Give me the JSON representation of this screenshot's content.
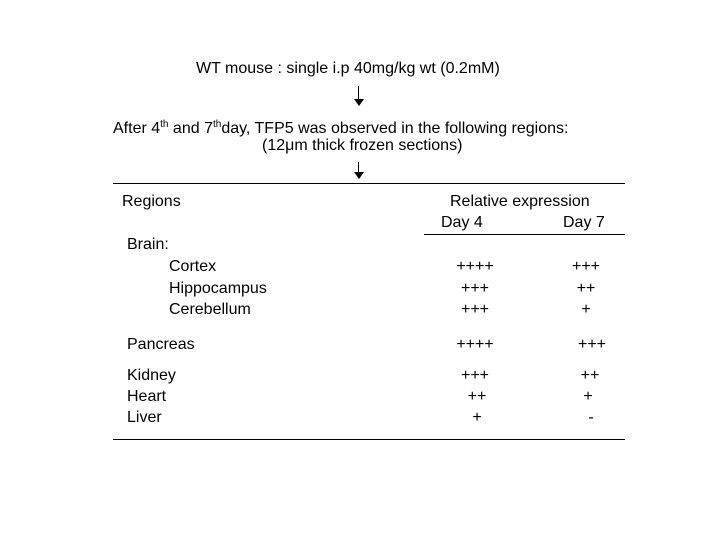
{
  "protocol": {
    "line1": "WT mouse : single i.p 40mg/kg wt (0.2mM)",
    "line2_a": "After  4",
    "line2_sup1": "th",
    "line2_b": " and  7",
    "line2_sup2": "th",
    "line2_c": "day, TFP5 was observed in the following regions:",
    "line3": "(12μm thick frozen sections)"
  },
  "table": {
    "header_regions": "Regions",
    "header_relative": "Relative expression",
    "header_day4": "Day 4",
    "header_day7": "Day 7",
    "brain_label": "Brain:",
    "rows": [
      {
        "region": "Cortex",
        "day4": "++++",
        "day7": "+++"
      },
      {
        "region": "Hippocampus",
        "day4": "+++",
        "day7": "++"
      },
      {
        "region": "Cerebellum",
        "day4": "+++",
        "day7": "+"
      },
      {
        "region": "Pancreas",
        "day4": "++++",
        "day7": "+++"
      },
      {
        "region": "Kidney",
        "day4": "+++",
        "day7": "++"
      },
      {
        "region": "Heart",
        "day4": "++",
        "day7": "+"
      },
      {
        "region": "Liver",
        "day4": "+",
        "day7": "-"
      }
    ]
  }
}
